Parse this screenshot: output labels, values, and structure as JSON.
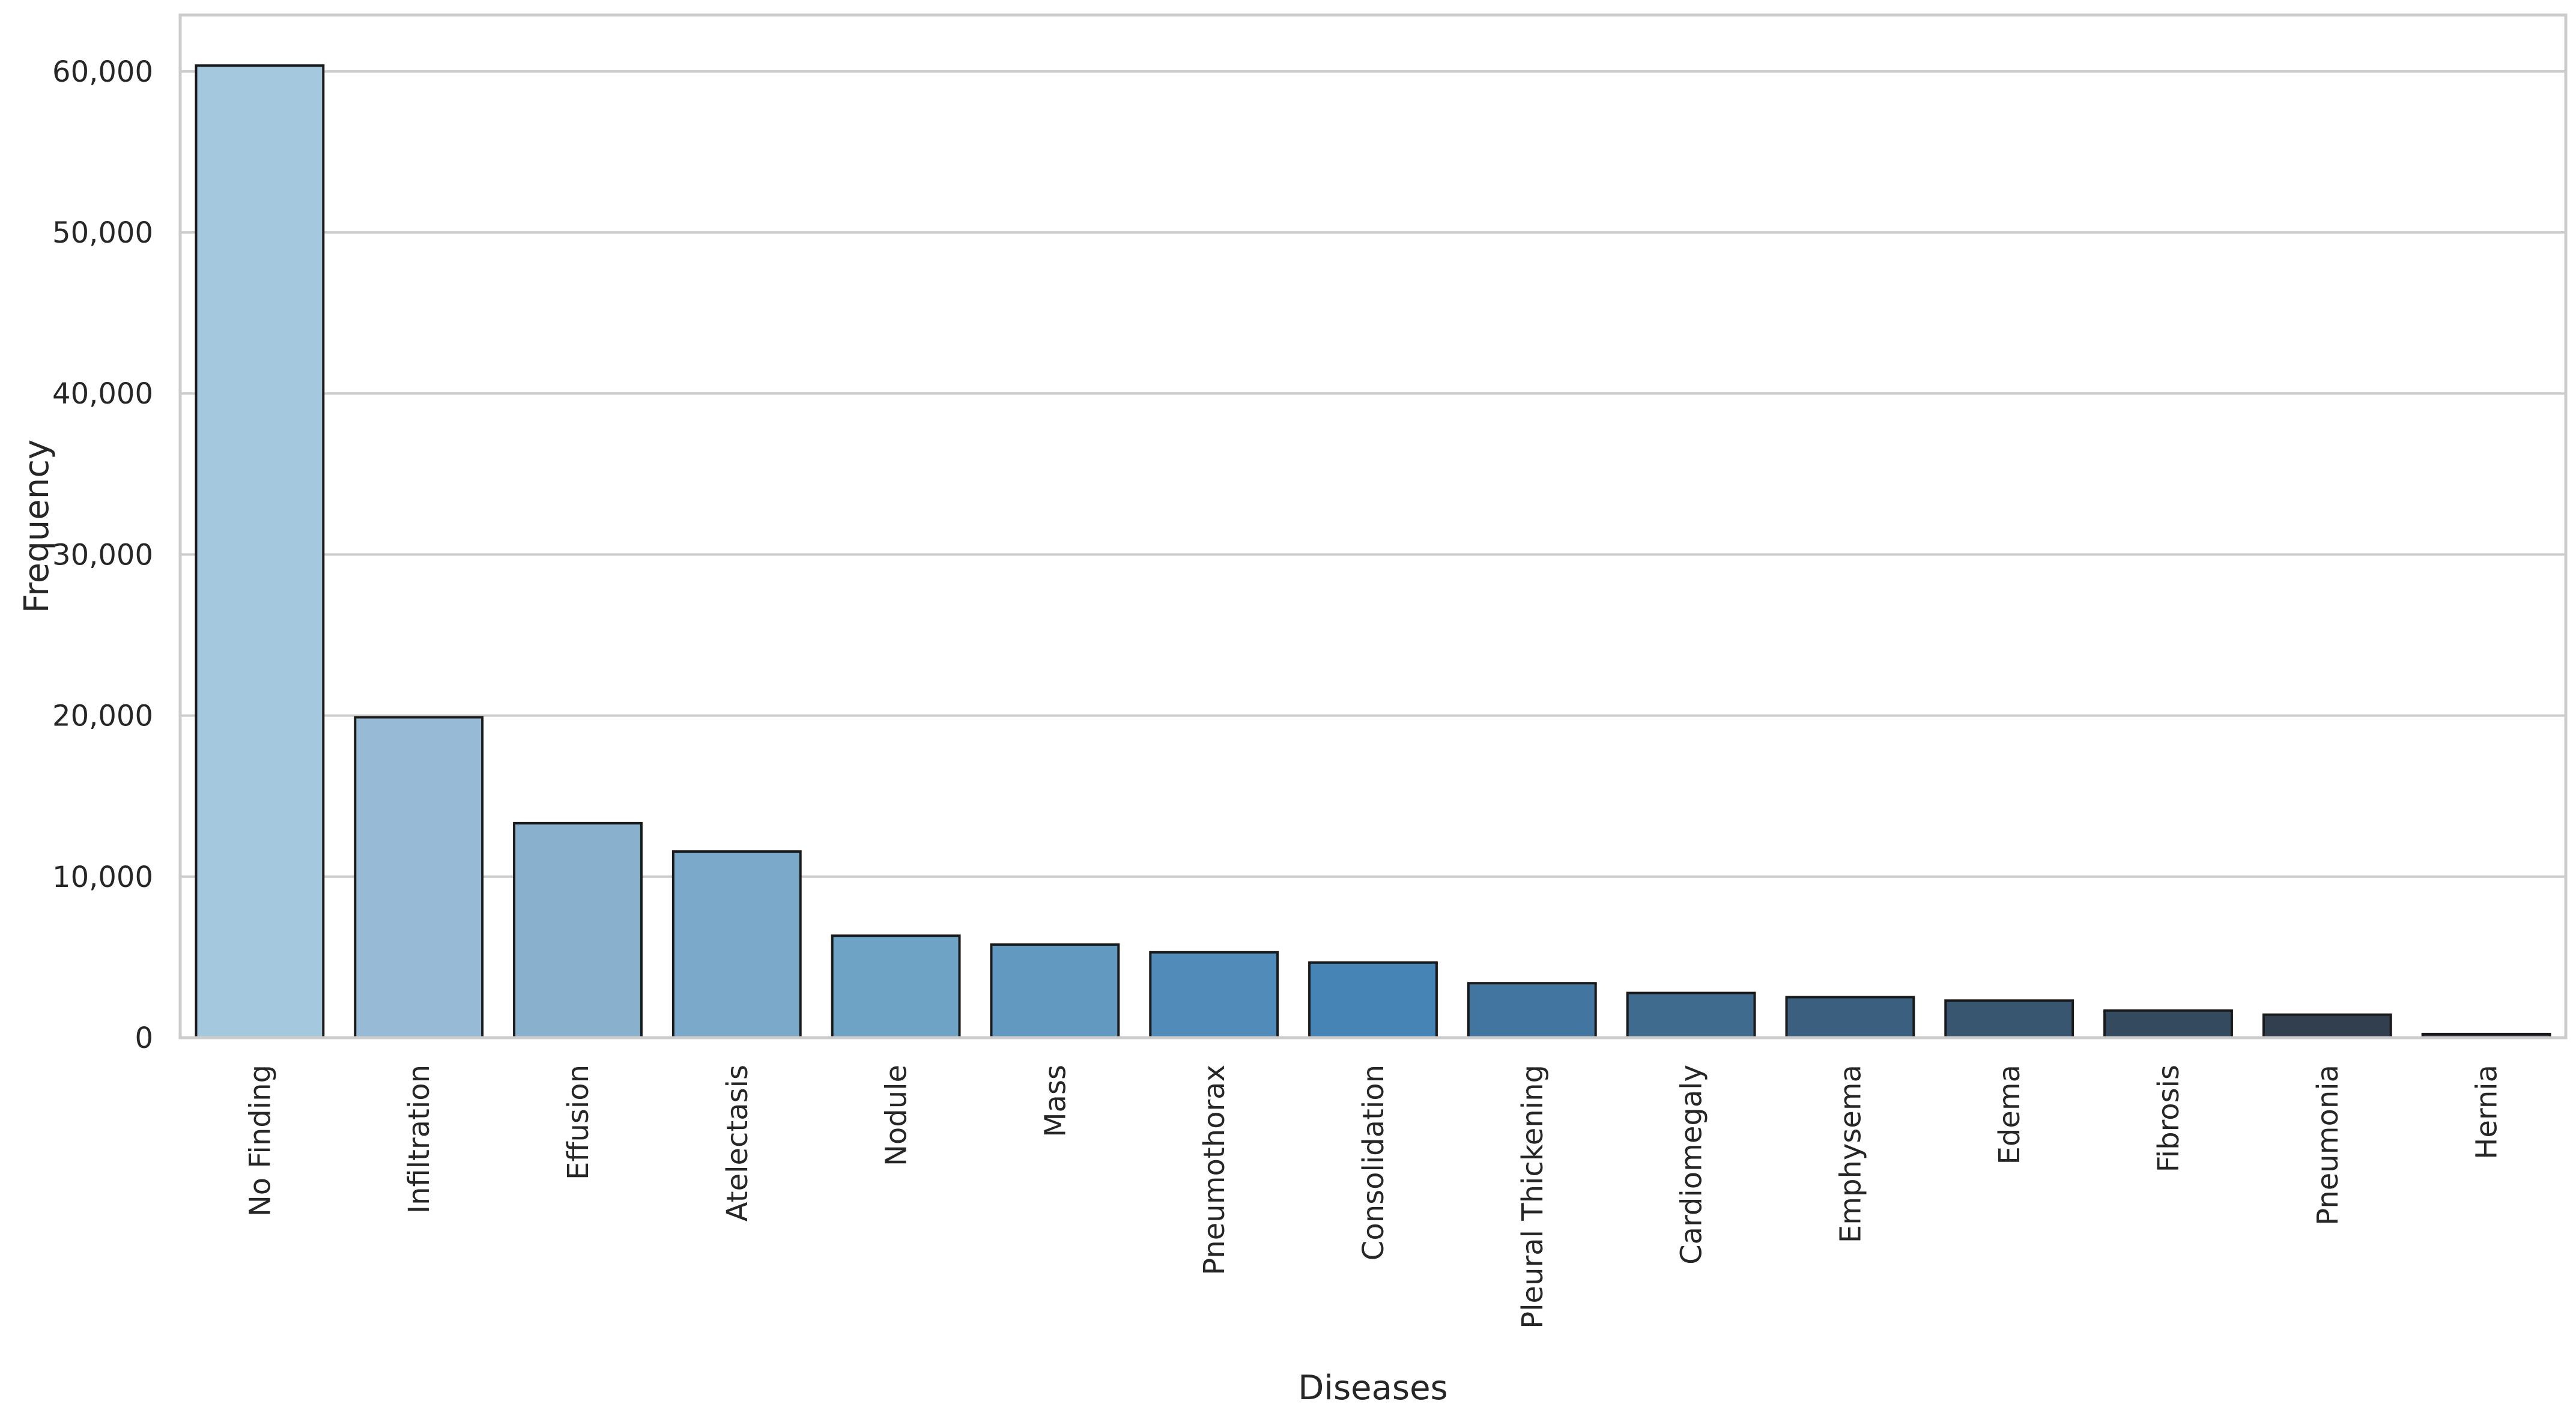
{
  "chart_data": {
    "type": "bar",
    "title": "",
    "xlabel": "Diseases",
    "ylabel": "Frequency",
    "ylim": [
      0,
      63500
    ],
    "yticks": [
      0,
      10000,
      20000,
      30000,
      40000,
      50000,
      60000
    ],
    "ytick_labels": [
      "0",
      "10,000",
      "20,000",
      "30,000",
      "40,000",
      "50,000",
      "60,000"
    ],
    "grid": "horizontal",
    "categories": [
      "No Finding",
      "Infiltration",
      "Effusion",
      "Atelectasis",
      "Nodule",
      "Mass",
      "Pneumothorax",
      "Consolidation",
      "Pleural Thickening",
      "Cardiomegaly",
      "Emphysema",
      "Edema",
      "Fibrosis",
      "Pneumonia",
      "Hernia"
    ],
    "values": [
      60361,
      19894,
      13317,
      11559,
      6331,
      5782,
      5302,
      4667,
      3385,
      2776,
      2516,
      2303,
      1686,
      1431,
      227
    ],
    "colors": [
      "#a4c8dd",
      "#97bbd6",
      "#89b1cd",
      "#7ba9ca",
      "#6ea3c6",
      "#6199c1",
      "#518bb9",
      "#4784b6",
      "#4276a0",
      "#3f6b8f",
      "#3b5f7f",
      "#385670",
      "#344a5f",
      "#323f4f",
      "#2e3540"
    ],
    "bar_edge_color": "#1a1a1a",
    "grid_color": "#cccccc",
    "frame_color": "#cccccc"
  }
}
